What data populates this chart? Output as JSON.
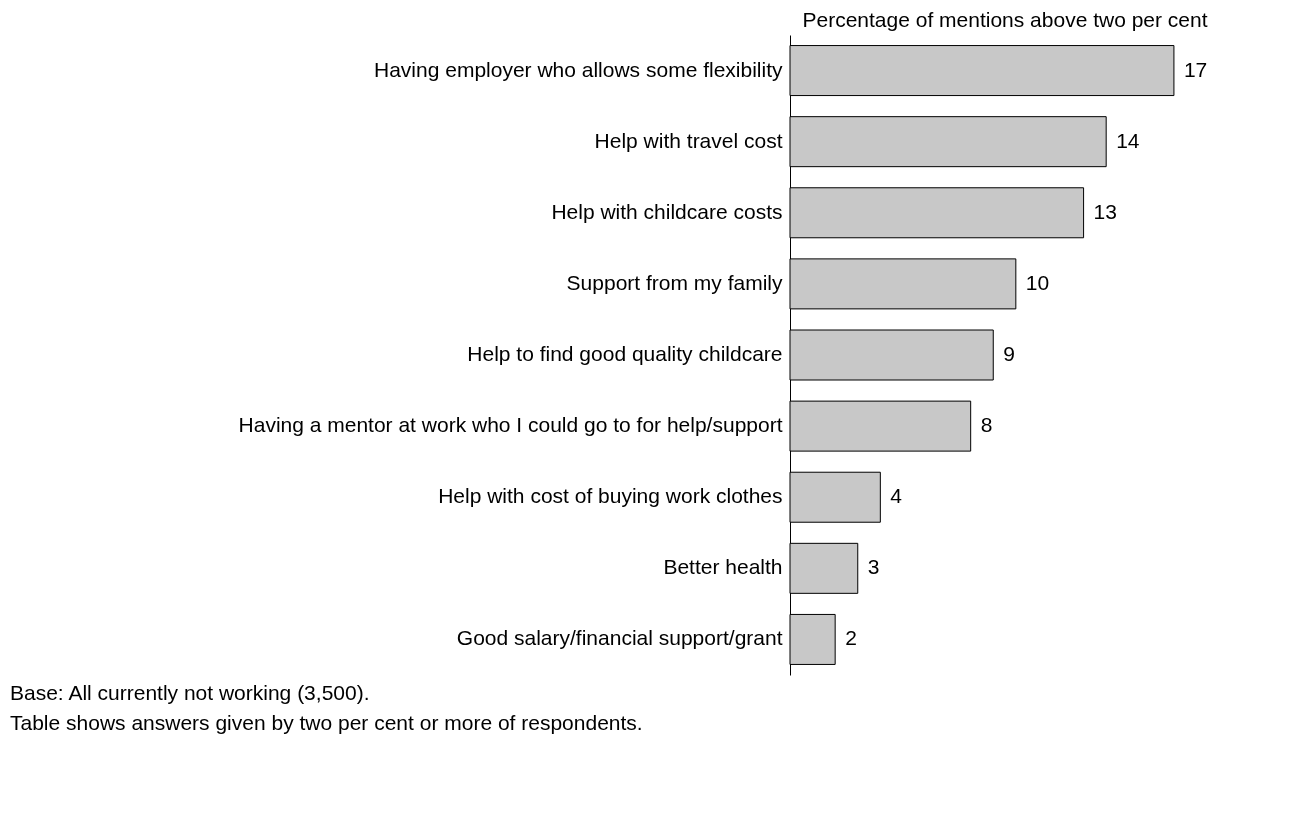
{
  "chart_data": {
    "type": "bar",
    "orientation": "horizontal",
    "title": "Percentage of mentions above two per cent",
    "categories": [
      "Having employer who allows some flexibility",
      "Help with travel cost",
      "Help with childcare costs",
      "Support from my family",
      "Help to find good quality childcare",
      "Having a mentor at work who I could go to for help/support",
      "Help with cost of buying work clothes",
      "Better health",
      "Good salary/financial support/grant"
    ],
    "values": [
      17,
      14,
      13,
      10,
      9,
      8,
      4,
      3,
      2
    ],
    "color": "#c8c8c8",
    "data_labels": true,
    "grid": false,
    "annotations": [
      "Base: All currently not working (3,500).",
      "Table shows answers given by two per cent or more of respondents."
    ]
  }
}
